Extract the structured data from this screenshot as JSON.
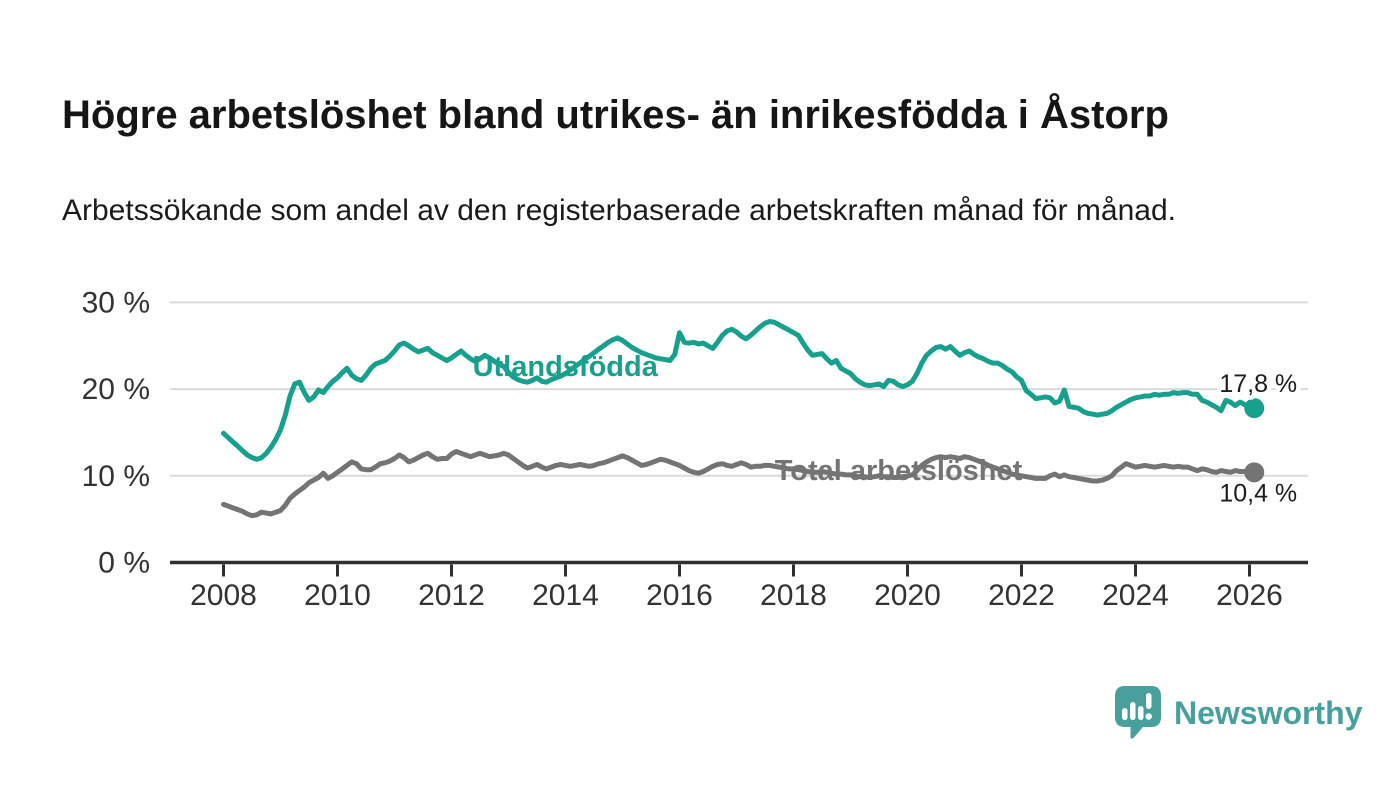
{
  "header": {
    "title": "Högre arbetslöshet bland utrikes- än inrikesfödda i Åstorp",
    "subtitle": "Arbetssökande som andel av den registerbaserade arbetskraften månad för månad."
  },
  "branding": {
    "logo_text": "Newsworthy",
    "logo_color": "#47a09c",
    "logo_icon": "bar-chart-speech-bubble"
  },
  "colors": {
    "title_text": "#161616",
    "axis": "#303030",
    "tick_label": "#333333",
    "gridline": "#dadada",
    "value_label": "#1d1d1d",
    "background": "#ffffff"
  },
  "chart_data": {
    "type": "line",
    "title": "",
    "xlabel": "",
    "ylabel": "",
    "x_start": "2008-01",
    "x_end": "2026-02",
    "x_step": "1 month",
    "x_tick_labels": [
      "2008",
      "2010",
      "2012",
      "2014",
      "2016",
      "2018",
      "2020",
      "2022",
      "2024",
      "2026"
    ],
    "x_tick_years": [
      2008,
      2010,
      2012,
      2014,
      2016,
      2018,
      2020,
      2022,
      2024,
      2026
    ],
    "y_tick_labels": [
      "0 %",
      "10 %",
      "20 %",
      "30 %"
    ],
    "y_ticks_pct": [
      0,
      10,
      20,
      30
    ],
    "ylim": [
      0,
      32.5
    ],
    "grid": "horizontal",
    "legend": "direct-labels-on-lines",
    "series": [
      {
        "name": "Utlandsfödda",
        "color": "#17a08d",
        "end_value": 17.8,
        "end_label": "17,8 %",
        "label_pos": {
          "x_year": 2012.37,
          "pct": 21.5
        },
        "values": [
          14.9,
          14.4,
          13.9,
          13.4,
          12.9,
          12.4,
          12.1,
          11.9,
          12.1,
          12.6,
          13.3,
          14.2,
          15.3,
          17.0,
          19.2,
          20.6,
          20.8,
          19.6,
          18.7,
          19.1,
          19.9,
          19.6,
          20.3,
          20.9,
          21.3,
          21.9,
          22.4,
          21.6,
          21.2,
          21.0,
          21.6,
          22.4,
          22.9,
          23.1,
          23.3,
          23.8,
          24.4,
          25.1,
          25.3,
          25.0,
          24.6,
          24.3,
          24.5,
          24.7,
          24.2,
          23.9,
          23.6,
          23.3,
          23.6,
          24.0,
          24.4,
          23.9,
          23.5,
          23.2,
          23.5,
          23.9,
          23.6,
          23.2,
          22.9,
          22.6,
          21.9,
          21.4,
          21.1,
          20.9,
          20.8,
          21.0,
          21.3,
          20.9,
          20.8,
          21.1,
          21.3,
          21.5,
          21.8,
          22.2,
          22.6,
          23.0,
          23.4,
          23.8,
          24.2,
          24.6,
          25.0,
          25.4,
          25.7,
          25.9,
          25.6,
          25.2,
          24.8,
          24.5,
          24.2,
          24.0,
          23.8,
          23.6,
          23.5,
          23.4,
          23.3,
          24.0,
          26.5,
          25.4,
          25.3,
          25.4,
          25.2,
          25.3,
          25.0,
          24.7,
          25.4,
          26.2,
          26.7,
          26.9,
          26.6,
          26.1,
          25.8,
          26.2,
          26.7,
          27.2,
          27.6,
          27.8,
          27.7,
          27.4,
          27.1,
          26.8,
          26.5,
          26.2,
          25.3,
          24.5,
          23.9,
          24.0,
          24.1,
          23.5,
          23.0,
          23.3,
          22.4,
          22.1,
          21.8,
          21.2,
          20.8,
          20.5,
          20.4,
          20.5,
          20.6,
          20.3,
          21.0,
          20.9,
          20.5,
          20.3,
          20.5,
          20.9,
          21.8,
          23.0,
          23.9,
          24.4,
          24.8,
          24.9,
          24.6,
          24.9,
          24.4,
          23.9,
          24.2,
          24.4,
          24.0,
          23.7,
          23.5,
          23.2,
          23.0,
          23.0,
          22.7,
          22.3,
          22.0,
          21.4,
          21.0,
          19.8,
          19.4,
          18.9,
          19.0,
          19.1,
          19.0,
          18.4,
          18.6,
          19.9,
          18.0,
          17.9,
          17.8,
          17.4,
          17.2,
          17.1,
          17.0,
          17.1,
          17.2,
          17.5,
          17.9,
          18.2,
          18.5,
          18.8,
          19.0,
          19.1,
          19.2,
          19.2,
          19.4,
          19.3,
          19.4,
          19.4,
          19.6,
          19.5,
          19.6,
          19.6,
          19.4,
          19.4,
          18.7,
          18.5,
          18.2,
          17.9,
          17.5,
          18.7,
          18.5,
          18.1,
          18.5,
          18.2,
          18.0,
          17.8
        ]
      },
      {
        "name": "Total arbetslöshet",
        "color": "#747474",
        "end_value": 10.4,
        "end_label": "10,4 %",
        "label_pos": {
          "x_year": 2017.67,
          "pct": 9.5
        },
        "values": [
          6.7,
          6.5,
          6.3,
          6.1,
          5.9,
          5.6,
          5.4,
          5.5,
          5.8,
          5.7,
          5.6,
          5.8,
          6.0,
          6.6,
          7.4,
          7.9,
          8.3,
          8.7,
          9.2,
          9.5,
          9.8,
          10.3,
          9.7,
          10.0,
          10.4,
          10.8,
          11.2,
          11.6,
          11.4,
          10.8,
          10.7,
          10.7,
          11.0,
          11.4,
          11.5,
          11.7,
          12.0,
          12.4,
          12.1,
          11.6,
          11.8,
          12.1,
          12.4,
          12.6,
          12.2,
          11.9,
          12.0,
          12.0,
          12.5,
          12.8,
          12.6,
          12.4,
          12.2,
          12.4,
          12.6,
          12.4,
          12.2,
          12.3,
          12.4,
          12.6,
          12.4,
          12.0,
          11.6,
          11.2,
          10.9,
          11.1,
          11.3,
          11.0,
          10.8,
          11.0,
          11.2,
          11.3,
          11.2,
          11.1,
          11.2,
          11.3,
          11.2,
          11.1,
          11.2,
          11.4,
          11.5,
          11.7,
          11.9,
          12.1,
          12.3,
          12.1,
          11.8,
          11.5,
          11.2,
          11.3,
          11.5,
          11.7,
          11.9,
          11.8,
          11.6,
          11.4,
          11.2,
          10.9,
          10.6,
          10.4,
          10.3,
          10.5,
          10.8,
          11.1,
          11.3,
          11.4,
          11.2,
          11.1,
          11.3,
          11.5,
          11.3,
          11.0,
          11.1,
          11.1,
          11.2,
          11.2,
          11.1,
          11.0,
          10.9,
          10.8,
          10.8,
          10.7,
          10.6,
          10.5,
          10.4,
          10.4,
          10.5,
          10.4,
          10.3,
          10.2,
          10.2,
          10.1,
          10.1,
          10.0,
          9.9,
          9.9,
          9.8,
          9.9,
          10.0,
          9.9,
          9.9,
          9.8,
          9.8,
          9.9,
          10.0,
          10.1,
          10.6,
          11.2,
          11.6,
          11.9,
          12.1,
          12.2,
          12.1,
          12.2,
          12.1,
          12.0,
          12.2,
          12.1,
          11.9,
          11.7,
          11.5,
          11.2,
          11.0,
          10.8,
          10.6,
          10.4,
          10.2,
          10.1,
          10.0,
          9.9,
          9.8,
          9.7,
          9.7,
          9.7,
          10.0,
          10.2,
          9.9,
          10.1,
          9.9,
          9.8,
          9.7,
          9.6,
          9.5,
          9.4,
          9.4,
          9.5,
          9.7,
          10.0,
          10.6,
          11.0,
          11.4,
          11.2,
          11.0,
          11.1,
          11.2,
          11.1,
          11.0,
          11.1,
          11.2,
          11.1,
          11.0,
          11.1,
          11.0,
          11.0,
          10.8,
          10.6,
          10.8,
          10.7,
          10.5,
          10.4,
          10.6,
          10.5,
          10.4,
          10.6,
          10.5,
          10.5,
          10.5,
          10.4
        ]
      }
    ]
  }
}
